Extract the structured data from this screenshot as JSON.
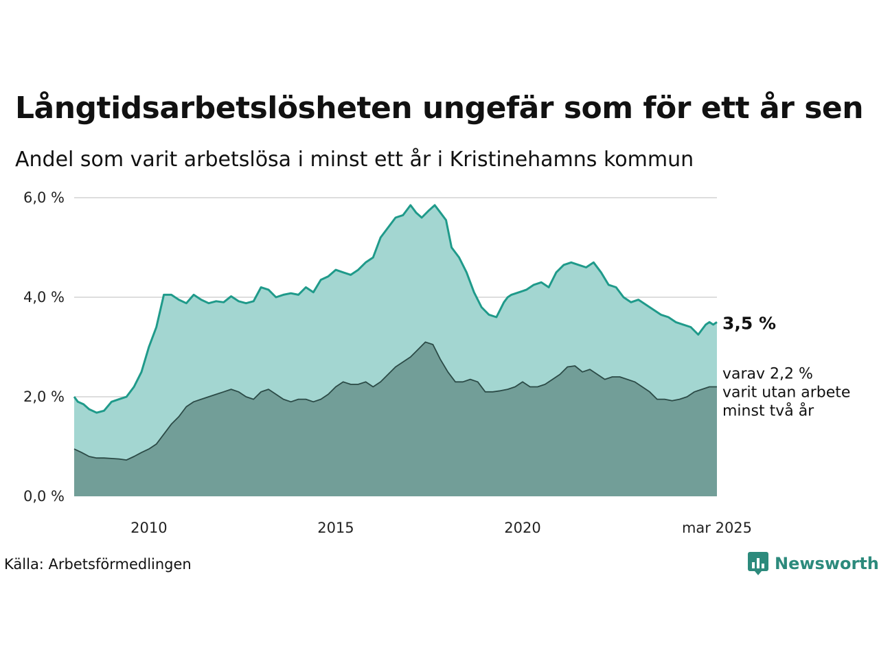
{
  "title": "Långtidsarbetslösheten ungefär som för ett år sen",
  "subtitle": "Andel som varit arbetslösa i minst ett år i Kristinehamns kommun",
  "source": "Källa: Arbetsförmedlingen",
  "logo_text": "Newsworthy",
  "colors": {
    "series1_line": "#1f9a8a",
    "series1_fill": "#a3d6d1",
    "series2_line": "#2b4a46",
    "series2_fill": "#729e98",
    "grid": "#dddddd",
    "logo": "#2c8a7c"
  },
  "chart_data": {
    "type": "area",
    "y_ticks": [
      {
        "value": 0,
        "label": "0,0 %"
      },
      {
        "value": 2,
        "label": "2,0 %"
      },
      {
        "value": 4,
        "label": "4,0 %"
      },
      {
        "value": 6,
        "label": "6,0 %"
      }
    ],
    "x_ticks": [
      {
        "value": 2010,
        "label": "2010"
      },
      {
        "value": 2015,
        "label": "2015"
      },
      {
        "value": 2020,
        "label": "2020"
      },
      {
        "value": 2025.2,
        "label": "mar 2025"
      }
    ],
    "xlim": [
      2008.0,
      2025.2
    ],
    "ylim": [
      0,
      6
    ],
    "grid": true,
    "end_label": "3,5 %",
    "sub_label_lines": [
      "varav 2,2 %",
      "varit utan arbete",
      "minst två år"
    ],
    "series": [
      {
        "x": [
          2008.0,
          2008.1,
          2008.25,
          2008.4,
          2008.6,
          2008.8,
          2009.0,
          2009.2,
          2009.4,
          2009.6,
          2009.8,
          2010.0,
          2010.2,
          2010.4,
          2010.6,
          2010.8,
          2011.0,
          2011.2,
          2011.4,
          2011.6,
          2011.8,
          2012.0,
          2012.2,
          2012.4,
          2012.6,
          2012.8,
          2013.0,
          2013.2,
          2013.4,
          2013.6,
          2013.8,
          2014.0,
          2014.2,
          2014.4,
          2014.6,
          2014.8,
          2015.0,
          2015.2,
          2015.4,
          2015.6,
          2015.8,
          2016.0,
          2016.2,
          2016.4,
          2016.6,
          2016.8,
          2017.0,
          2017.15,
          2017.3,
          2017.5,
          2017.65,
          2017.8,
          2017.95,
          2018.1,
          2018.3,
          2018.5,
          2018.7,
          2018.9,
          2019.1,
          2019.3,
          2019.5,
          2019.6,
          2019.7,
          2019.9,
          2020.1,
          2020.3,
          2020.5,
          2020.7,
          2020.9,
          2021.1,
          2021.3,
          2021.5,
          2021.7,
          2021.9,
          2022.1,
          2022.3,
          2022.5,
          2022.7,
          2022.9,
          2023.1,
          2023.3,
          2023.5,
          2023.7,
          2023.9,
          2024.1,
          2024.3,
          2024.5,
          2024.7,
          2024.8,
          2024.9,
          2025.0,
          2025.1,
          2025.2
        ],
        "values": [
          2.0,
          1.9,
          1.85,
          1.75,
          1.68,
          1.72,
          1.9,
          1.95,
          2.0,
          2.2,
          2.5,
          3.0,
          3.4,
          4.05,
          4.05,
          3.95,
          3.88,
          4.05,
          3.95,
          3.88,
          3.92,
          3.9,
          4.02,
          3.92,
          3.88,
          3.92,
          4.2,
          4.15,
          4.0,
          4.05,
          4.08,
          4.05,
          4.2,
          4.1,
          4.35,
          4.42,
          4.55,
          4.5,
          4.45,
          4.55,
          4.7,
          4.8,
          5.2,
          5.4,
          5.6,
          5.65,
          5.85,
          5.7,
          5.6,
          5.75,
          5.85,
          5.7,
          5.55,
          5.0,
          4.8,
          4.5,
          4.1,
          3.8,
          3.65,
          3.6,
          3.9,
          4.0,
          4.05,
          4.1,
          4.15,
          4.25,
          4.3,
          4.2,
          4.5,
          4.65,
          4.7,
          4.65,
          4.6,
          4.7,
          4.5,
          4.25,
          4.2,
          4.0,
          3.9,
          3.95,
          3.85,
          3.75,
          3.65,
          3.6,
          3.5,
          3.45,
          3.4,
          3.25,
          3.35,
          3.45,
          3.5,
          3.45,
          3.5
        ]
      },
      {
        "x": [
          2008.0,
          2008.2,
          2008.4,
          2008.6,
          2008.8,
          2009.0,
          2009.2,
          2009.4,
          2009.6,
          2009.8,
          2010.0,
          2010.2,
          2010.4,
          2010.6,
          2010.8,
          2011.0,
          2011.2,
          2011.4,
          2011.6,
          2011.8,
          2012.0,
          2012.2,
          2012.4,
          2012.6,
          2012.8,
          2013.0,
          2013.2,
          2013.4,
          2013.6,
          2013.8,
          2014.0,
          2014.2,
          2014.4,
          2014.6,
          2014.8,
          2015.0,
          2015.2,
          2015.4,
          2015.6,
          2015.8,
          2016.0,
          2016.2,
          2016.4,
          2016.6,
          2016.8,
          2017.0,
          2017.2,
          2017.4,
          2017.6,
          2017.8,
          2018.0,
          2018.2,
          2018.4,
          2018.6,
          2018.8,
          2019.0,
          2019.2,
          2019.4,
          2019.6,
          2019.8,
          2020.0,
          2020.2,
          2020.4,
          2020.6,
          2020.8,
          2021.0,
          2021.2,
          2021.4,
          2021.6,
          2021.8,
          2022.0,
          2022.2,
          2022.4,
          2022.6,
          2022.8,
          2023.0,
          2023.2,
          2023.4,
          2023.6,
          2023.8,
          2024.0,
          2024.2,
          2024.4,
          2024.6,
          2024.8,
          2025.0,
          2025.2
        ],
        "values": [
          0.95,
          0.88,
          0.8,
          0.77,
          0.77,
          0.76,
          0.75,
          0.73,
          0.8,
          0.88,
          0.95,
          1.05,
          1.25,
          1.45,
          1.6,
          1.8,
          1.9,
          1.95,
          2.0,
          2.05,
          2.1,
          2.15,
          2.1,
          2.0,
          1.95,
          2.1,
          2.15,
          2.05,
          1.95,
          1.9,
          1.95,
          1.95,
          1.9,
          1.95,
          2.05,
          2.2,
          2.3,
          2.25,
          2.25,
          2.3,
          2.2,
          2.3,
          2.45,
          2.6,
          2.7,
          2.8,
          2.95,
          3.1,
          3.05,
          2.75,
          2.5,
          2.3,
          2.3,
          2.35,
          2.3,
          2.1,
          2.1,
          2.12,
          2.15,
          2.2,
          2.3,
          2.2,
          2.2,
          2.25,
          2.35,
          2.45,
          2.6,
          2.62,
          2.5,
          2.55,
          2.45,
          2.35,
          2.4,
          2.4,
          2.35,
          2.3,
          2.2,
          2.1,
          1.95,
          1.95,
          1.92,
          1.95,
          2.0,
          2.1,
          2.15,
          2.2,
          2.2
        ]
      }
    ]
  }
}
